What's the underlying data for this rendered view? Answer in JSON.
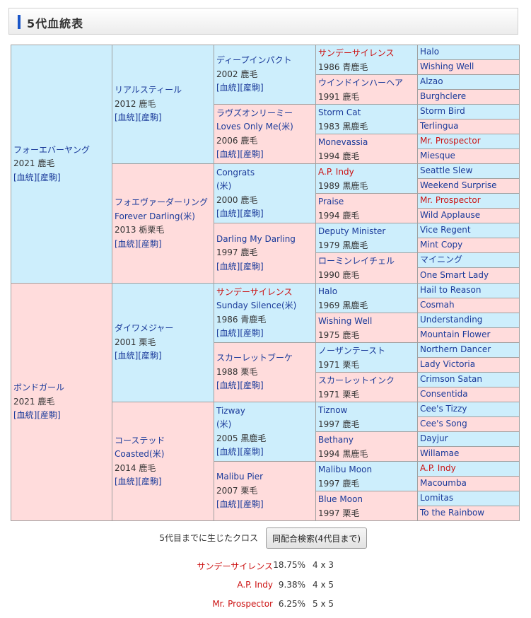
{
  "header": {
    "title": "5代血統表"
  },
  "links": {
    "pedigree": "[血統]",
    "offspring": "[産駒]"
  },
  "colors": {
    "male": "#cdeefc",
    "female": "#ffdcdc",
    "link": "#1a3a9a",
    "cross_highlight": "#cc1111"
  },
  "pedigree": {
    "gen1": [
      {
        "name": "フォーエバーヤング",
        "year": "2021",
        "coat": "鹿毛"
      },
      {
        "name": "ボンドガール",
        "year": "2021",
        "coat": "鹿毛"
      }
    ],
    "gen2": [
      {
        "name": "リアルスティール",
        "year": "2012",
        "coat": "鹿毛"
      },
      {
        "name": "フォエヴァーダーリング",
        "name_en": "Forever Darling(米)",
        "year": "2013",
        "coat": "栃栗毛"
      },
      {
        "name": "ダイワメジャー",
        "year": "2001",
        "coat": "栗毛"
      },
      {
        "name": "コーステッド",
        "name_en": "Coasted(米)",
        "year": "2014",
        "coat": "鹿毛"
      }
    ],
    "gen3": [
      {
        "name": "ディープインパクト",
        "year": "2002",
        "coat": "鹿毛"
      },
      {
        "name": "ラヴズオンリーミー",
        "name_en": "Loves Only Me(米)",
        "year": "2006",
        "coat": "鹿毛"
      },
      {
        "name": "Congrats",
        "name_en": "(米)",
        "year": "2000",
        "coat": "鹿毛"
      },
      {
        "name": "Darling My Darling",
        "year": "1997",
        "coat": "鹿毛"
      },
      {
        "name": "サンデーサイレンス",
        "name_en": "Sunday Silence(米)",
        "year": "1986",
        "coat": "青鹿毛",
        "cross": true
      },
      {
        "name": "スカーレットブーケ",
        "year": "1988",
        "coat": "栗毛"
      },
      {
        "name": "Tizway",
        "name_en": "(米)",
        "year": "2005",
        "coat": "黒鹿毛"
      },
      {
        "name": "Malibu Pier",
        "year": "2007",
        "coat": "栗毛"
      }
    ],
    "gen4": [
      {
        "name": "サンデーサイレンス",
        "year": "1986",
        "coat": "青鹿毛",
        "cross": true
      },
      {
        "name": "ウインドインハーヘア",
        "year": "1991",
        "coat": "鹿毛"
      },
      {
        "name": "Storm Cat",
        "year": "1983",
        "coat": "黒鹿毛"
      },
      {
        "name": "Monevassia",
        "year": "1994",
        "coat": "鹿毛"
      },
      {
        "name": "A.P. Indy",
        "year": "1989",
        "coat": "黒鹿毛",
        "cross": true
      },
      {
        "name": "Praise",
        "year": "1994",
        "coat": "鹿毛"
      },
      {
        "name": "Deputy Minister",
        "year": "1979",
        "coat": "黒鹿毛"
      },
      {
        "name": "ローミンレイチェル",
        "year": "1990",
        "coat": "鹿毛"
      },
      {
        "name": "Halo",
        "year": "1969",
        "coat": "黒鹿毛"
      },
      {
        "name": "Wishing Well",
        "year": "1975",
        "coat": "鹿毛"
      },
      {
        "name": "ノーザンテースト",
        "year": "1971",
        "coat": "栗毛"
      },
      {
        "name": "スカーレットインク",
        "year": "1971",
        "coat": "栗毛"
      },
      {
        "name": "Tiznow",
        "year": "1997",
        "coat": "鹿毛"
      },
      {
        "name": "Bethany",
        "year": "1994",
        "coat": "黒鹿毛"
      },
      {
        "name": "Malibu Moon",
        "year": "1997",
        "coat": "鹿毛"
      },
      {
        "name": "Blue Moon",
        "year": "1997",
        "coat": "栗毛"
      }
    ],
    "gen5": [
      {
        "name": "Halo"
      },
      {
        "name": "Wishing Well"
      },
      {
        "name": "Alzao"
      },
      {
        "name": "Burghclere"
      },
      {
        "name": "Storm Bird"
      },
      {
        "name": "Terlingua"
      },
      {
        "name": "Mr. Prospector",
        "cross": true
      },
      {
        "name": "Miesque"
      },
      {
        "name": "Seattle Slew"
      },
      {
        "name": "Weekend Surprise"
      },
      {
        "name": "Mr. Prospector",
        "cross": true
      },
      {
        "name": "Wild Applause"
      },
      {
        "name": "Vice Regent"
      },
      {
        "name": "Mint Copy"
      },
      {
        "name": "マイニング"
      },
      {
        "name": "One Smart Lady"
      },
      {
        "name": "Hail to Reason"
      },
      {
        "name": "Cosmah"
      },
      {
        "name": "Understanding"
      },
      {
        "name": "Mountain Flower"
      },
      {
        "name": "Northern Dancer"
      },
      {
        "name": "Lady Victoria"
      },
      {
        "name": "Crimson Satan"
      },
      {
        "name": "Consentida"
      },
      {
        "name": "Cee's Tizzy"
      },
      {
        "name": "Cee's Song"
      },
      {
        "name": "Dayjur"
      },
      {
        "name": "Willamae"
      },
      {
        "name": "A.P. Indy",
        "cross": true
      },
      {
        "name": "Macoumba"
      },
      {
        "name": "Lomitas"
      },
      {
        "name": "To the Rainbow"
      }
    ]
  },
  "crosses": {
    "label": "5代目までに生じたクロス",
    "search_button": "同配合検索(4代目まで)",
    "items": [
      {
        "name": "サンデーサイレンス",
        "percent": "18.75%",
        "generations": "4 x 3"
      },
      {
        "name": "A.P. Indy",
        "percent": "9.38%",
        "generations": "4 x 5"
      },
      {
        "name": "Mr. Prospector",
        "percent": "6.25%",
        "generations": "5 x 5"
      }
    ]
  }
}
